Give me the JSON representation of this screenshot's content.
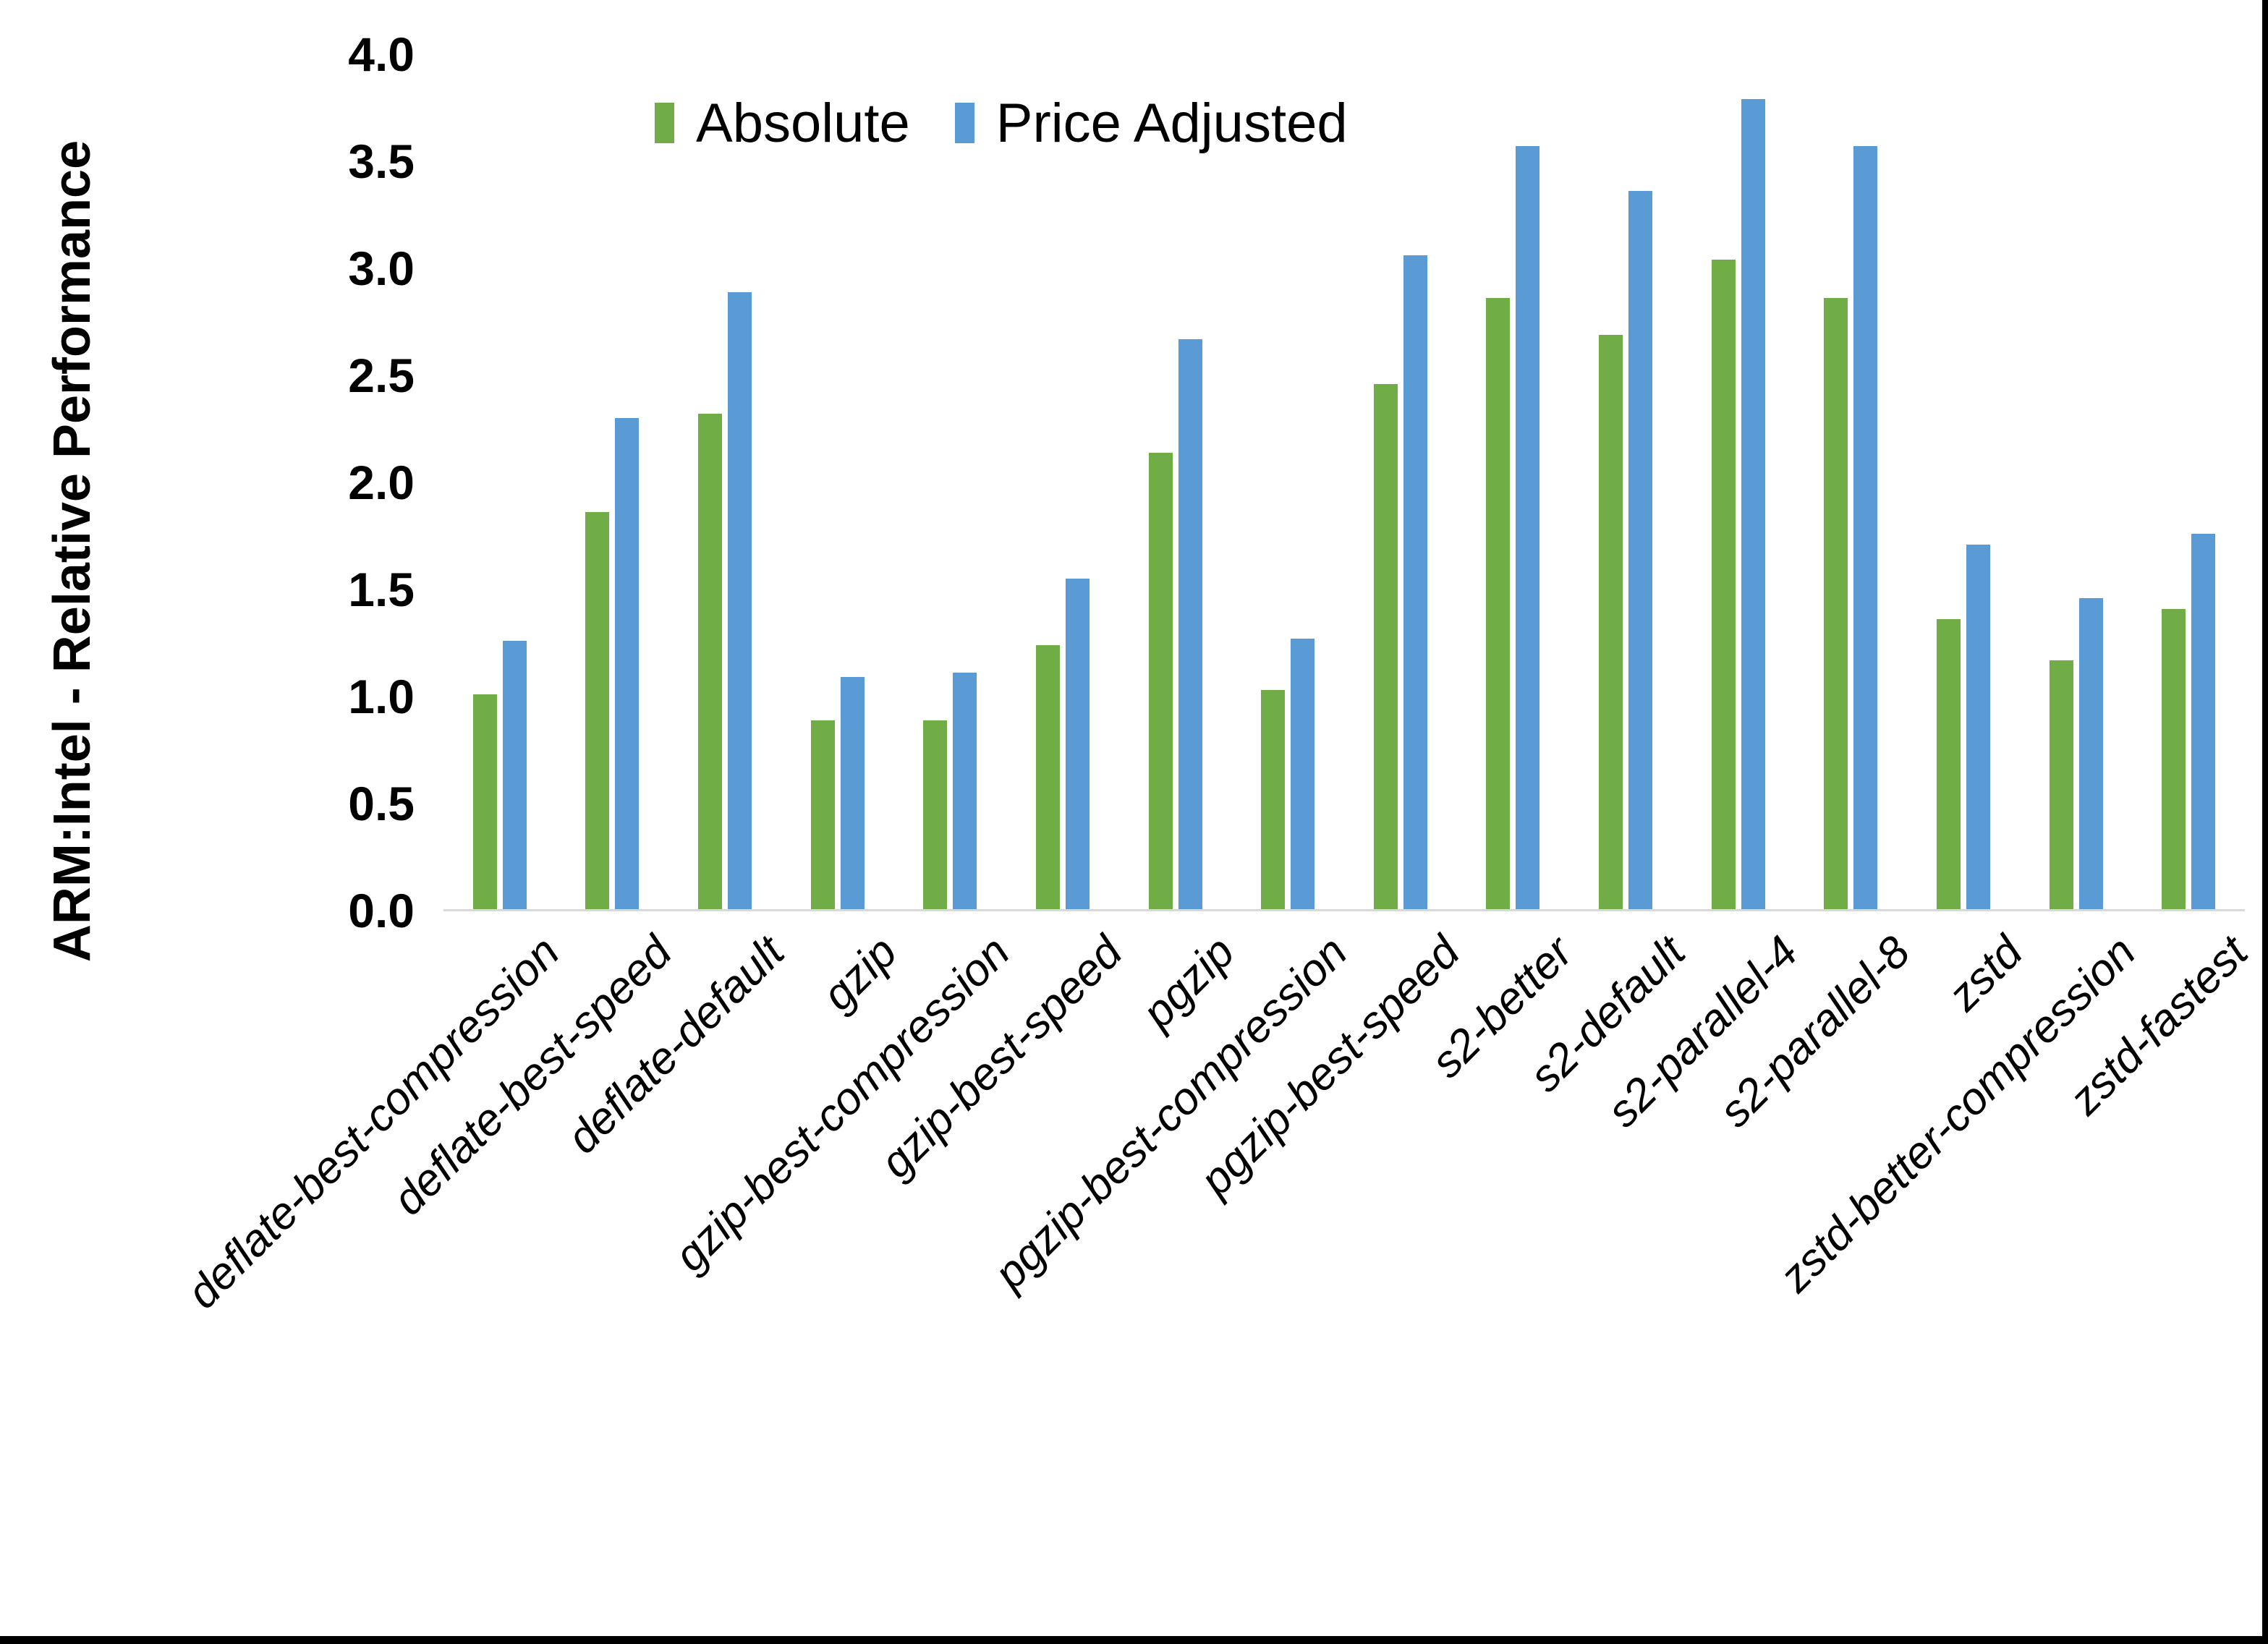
{
  "chart_data": {
    "type": "bar",
    "y_axis_title": "ARM:Intel - Relative Performance",
    "categories": [
      "deflate-best-compression",
      "deflate-best-speed",
      "deflate-default",
      "gzip",
      "gzip-best-compression",
      "gzip-best-speed",
      "pgzip",
      "pgzip-best-compression",
      "pgzip-best-speed",
      "s2-better",
      "s2-default",
      "s2-parallel-4",
      "s2-parallel-8",
      "zstd",
      "zstd-better-compression",
      "zstd-fastest"
    ],
    "series": [
      {
        "name": "Absolute",
        "color": "#70AD47",
        "values": [
          1.01,
          1.86,
          2.32,
          0.89,
          0.89,
          1.24,
          2.14,
          1.03,
          2.46,
          2.86,
          2.69,
          3.04,
          2.86,
          1.36,
          1.17,
          1.41
        ]
      },
      {
        "name": "Price Adjusted",
        "color": "#5B9BD5",
        "values": [
          1.26,
          2.3,
          2.89,
          1.09,
          1.11,
          1.55,
          2.67,
          1.27,
          3.06,
          3.57,
          3.36,
          3.79,
          3.57,
          1.71,
          1.46,
          1.76
        ]
      }
    ],
    "ylim": [
      0,
      4
    ],
    "y_ticks": [
      "0.0",
      "0.5",
      "1.0",
      "1.5",
      "2.0",
      "2.5",
      "3.0",
      "3.5",
      "4.0"
    ],
    "grid": "off",
    "legend_position": "top",
    "axis_line_color": "#D9D9D9"
  }
}
